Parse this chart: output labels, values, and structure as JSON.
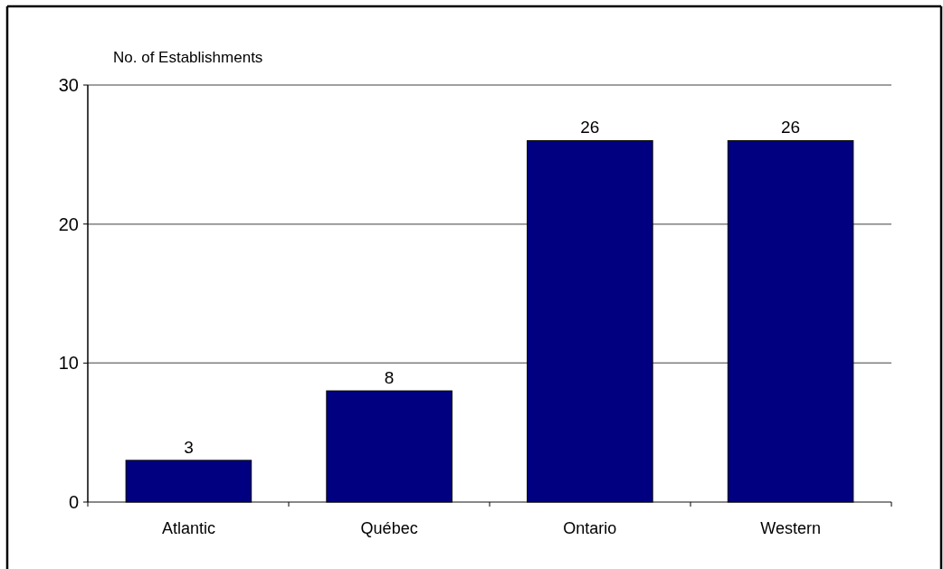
{
  "chart_data": {
    "type": "bar",
    "ylabel": "No. of Establishments",
    "categories": [
      "Atlantic",
      "Québec",
      "Ontario",
      "Western"
    ],
    "values": [
      3,
      8,
      26,
      26
    ],
    "color": "#000080",
    "ylim": [
      0,
      30
    ],
    "yticks": [
      0,
      10,
      20,
      30
    ],
    "grid": "y",
    "data_labels": true
  }
}
